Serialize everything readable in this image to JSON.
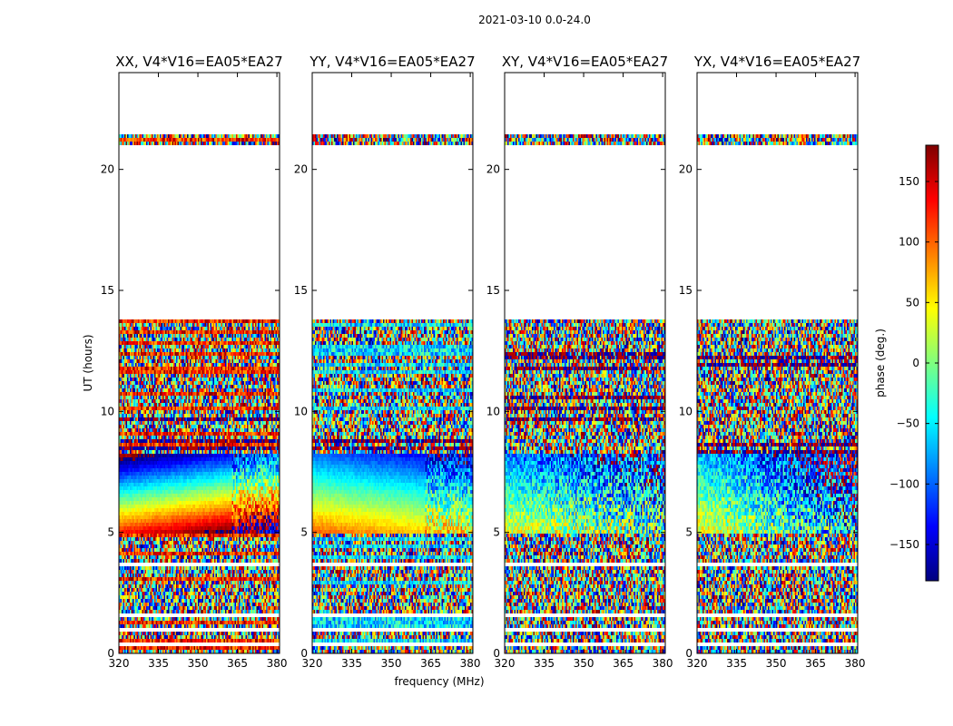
{
  "figure_title": "2021-03-10 0.0-24.0",
  "chart_data": {
    "type": "heatmap",
    "title": "2021-03-10 0.0-24.0",
    "xlabel": "frequency (MHz)",
    "ylabel": "UT (hours)",
    "xlim": [
      320,
      381
    ],
    "ylim": [
      0,
      24
    ],
    "xticks": [
      320,
      335,
      350,
      365,
      380
    ],
    "yticks": [
      0,
      5,
      10,
      15,
      20
    ],
    "colorbar": {
      "label": "phase (deg.)",
      "range": [
        -180,
        180
      ],
      "ticks": [
        150,
        100,
        50,
        0,
        -50,
        -100,
        -150
      ],
      "tick_labels": [
        "150",
        "100",
        "50",
        "0",
        "−50",
        "−100",
        "−150"
      ],
      "colormap": "jet"
    },
    "panels": [
      {
        "title": "XX, V4*V16=EA05*EA27",
        "polarization": "XX",
        "baseline": "V4*V16=EA05*EA27"
      },
      {
        "title": "YY, V4*V16=EA05*EA27",
        "polarization": "YY",
        "baseline": "V4*V16=EA05*EA27"
      },
      {
        "title": "XY, V4*V16=EA05*EA27",
        "polarization": "XY",
        "baseline": "V4*V16=EA05*EA27"
      },
      {
        "title": "YX, V4*V16=EA05*EA27",
        "polarization": "YX",
        "baseline": "V4*V16=EA05*EA27"
      }
    ],
    "data_coverage_hours": [
      [
        0.0,
        13.8
      ],
      [
        21.0,
        21.5
      ]
    ],
    "flagged_gaps_hours": [
      [
        0.3,
        0.4
      ],
      [
        0.9,
        1.0
      ],
      [
        1.5,
        1.7
      ],
      [
        2.2,
        2.3
      ],
      [
        3.6,
        3.7
      ],
      [
        13.0,
        13.1
      ]
    ],
    "smooth_phase_region_hours": [
      5.0,
      8.2
    ],
    "color_scale": {
      "stops": [
        "#00007f",
        "#0000ff",
        "#007fff",
        "#00ffff",
        "#7fff7f",
        "#ffff00",
        "#ff7f00",
        "#ff0000",
        "#7f0000"
      ]
    }
  }
}
